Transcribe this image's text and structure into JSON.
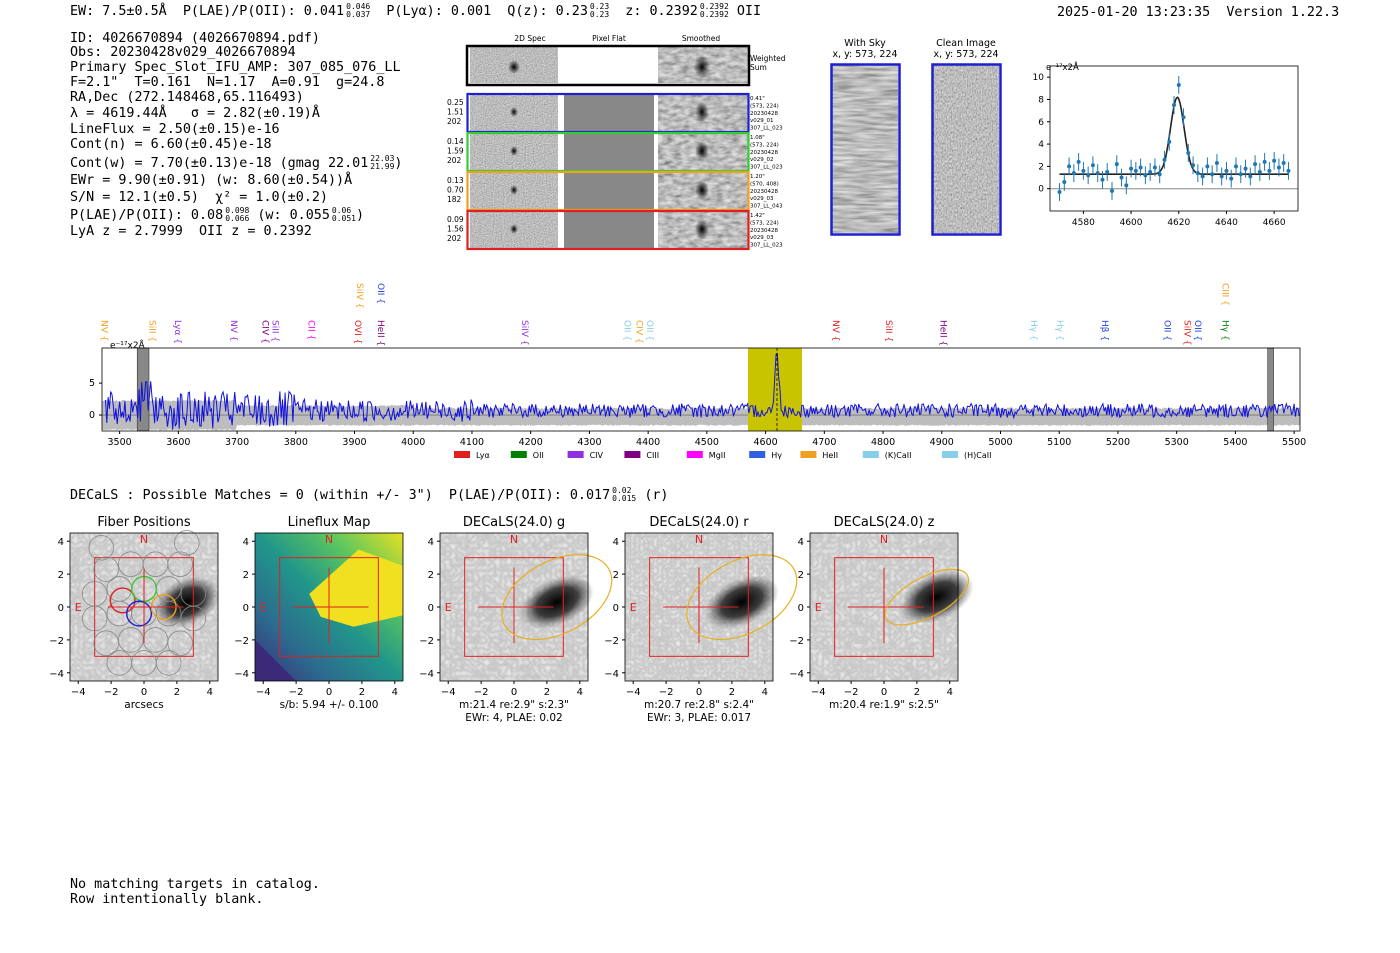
{
  "header": {
    "ew": "EW: 7.5±0.5Å",
    "plae_label": "P(LAE)/P(OII): 0.041",
    "plae_hi": "0.046",
    "plae_lo": "0.037",
    "plya": "P(Lyα): 0.001",
    "qz_label": "Q(z): 0.23",
    "qz_hi": "0.23",
    "qz_lo": "0.23",
    "z_label": "z: 0.2392",
    "z_hi": "0.2392",
    "z_lo": "0.2392",
    "z_type": "OII",
    "timestamp": "2025-01-20 13:23:35",
    "version": "Version 1.22.3"
  },
  "info": {
    "id": "ID: 4026670894 (4026670894.pdf)",
    "obs": "Obs: 20230428v029_4026670894",
    "slot": "Primary Spec_Slot_IFU_AMP: 307_085_076_LL",
    "params": "F=2.1\"  T=0.161  N=1.17  A=0.91  g=24.8",
    "radec": "RA,Dec (272.148468,65.116493)",
    "lambda": "λ = 4619.44Å   σ = 2.82(±0.19)Å",
    "lineflux": "LineFlux = 2.50(±0.15)e-16",
    "contn": "Cont(n) = 6.60(±0.45)e-18",
    "contw": "Cont(w) = 7.70(±0.13)e-18 (gmag 22.01",
    "contw_hi": "22.03",
    "contw_lo": "21.99",
    "contw_end": ")",
    "ewr": "EWr = 9.90(±0.91) (w: 8.60(±0.54))Å",
    "sn": "S/N = 12.1(±0.5)  χ² = 1.0(±0.2)",
    "plae": "P(LAE)/P(OII): 0.08",
    "plae_hi": "0.098",
    "plae_lo": "0.066",
    "plae_w": " (w: 0.055",
    "plae_w_hi": "0.06",
    "plae_w_lo": "0.051",
    "plae_w_end": ")",
    "lyaz": "LyA z = 2.7999  OII z = 0.2392"
  },
  "cutouts": {
    "col_2d": "2D Spec",
    "col_flat": "Pixel Flat",
    "col_smooth": "Smoothed",
    "weighted": "Weighted\nSum",
    "rows": [
      {
        "vals": "0.25\n1.51\n202",
        "meta": "0.41\"\n(573, 224)\n20230428\nv029_01\n307_LL_023",
        "color": "#1f1fd0"
      },
      {
        "vals": "0.14\n1.59\n202",
        "meta": "1.08\"\n(573, 224)\n20230428\nv029_02\n307_LL_023",
        "color": "#33cc33"
      },
      {
        "vals": "0.13\n0.70\n182",
        "meta": "1.20\"\n(570, 408)\n20230428\nv029_03\n307_LL_043",
        "color": "#f0a020"
      },
      {
        "vals": "0.09\n1.56\n202",
        "meta": "1.42\"\n(573, 224)\n20230428\nv029_03\n307_LL_023",
        "color": "#e02020"
      }
    ],
    "with_sky": "With Sky",
    "with_sky_xy": "x, y: 573, 224",
    "clean": "Clean Image",
    "clean_xy": "x, y: 573, 224"
  },
  "zoom_chart": {
    "type": "scatter",
    "unit_label": "e⁻¹⁷x2Å",
    "xlim": [
      4566,
      4670
    ],
    "ylim": [
      -2,
      11
    ],
    "xticks": [
      4580,
      4600,
      4620,
      4640,
      4660
    ],
    "yticks": [
      0,
      2,
      4,
      6,
      8,
      10
    ],
    "gauss": {
      "mu": 4619.4,
      "sigma": 2.82,
      "amp": 6.9,
      "cont": 1.3
    },
    "x": [
      4570,
      4572,
      4574,
      4576,
      4578,
      4580,
      4582,
      4584,
      4586,
      4588,
      4590,
      4592,
      4594,
      4596,
      4598,
      4600,
      4602,
      4604,
      4606,
      4608,
      4610,
      4612,
      4614,
      4616,
      4618,
      4620,
      4622,
      4624,
      4626,
      4628,
      4630,
      4632,
      4634,
      4636,
      4638,
      4640,
      4642,
      4644,
      4646,
      4648,
      4650,
      4652,
      4654,
      4656,
      4658,
      4660,
      4662,
      4664,
      4666
    ],
    "y": [
      -0.3,
      0.6,
      2.0,
      1.4,
      2.4,
      1.6,
      1.2,
      2.1,
      1.4,
      0.8,
      1.5,
      -0.2,
      2.2,
      1.0,
      0.3,
      1.8,
      1.6,
      1.9,
      1.2,
      1.5,
      1.9,
      1.3,
      2.6,
      4.2,
      7.5,
      9.3,
      6.4,
      3.2,
      2.1,
      1.4,
      1.1,
      2.0,
      1.3,
      2.3,
      1.1,
      1.6,
      0.9,
      2.0,
      1.3,
      1.8,
      1.1,
      2.2,
      1.5,
      2.4,
      1.6,
      2.5,
      1.9,
      2.3,
      1.6
    ],
    "err": [
      0.8,
      0.8,
      0.8,
      0.8,
      0.8,
      0.8,
      0.8,
      0.8,
      0.8,
      0.8,
      0.8,
      0.8,
      0.8,
      0.8,
      0.8,
      0.8,
      0.8,
      0.8,
      0.8,
      0.8,
      0.8,
      0.8,
      0.8,
      0.8,
      0.8,
      0.8,
      0.8,
      0.8,
      0.8,
      0.8,
      0.8,
      0.8,
      0.8,
      0.8,
      0.8,
      0.8,
      0.8,
      0.8,
      0.8,
      0.8,
      0.8,
      0.8,
      0.8,
      0.8,
      0.8,
      0.8,
      0.8,
      0.8,
      0.8
    ]
  },
  "chart_data": {
    "type": "line",
    "title": "",
    "unit_label": "e⁻¹⁷x2Å",
    "xlim": [
      3470,
      5510
    ],
    "ylim": [
      -2.5,
      10.5
    ],
    "xticks": [
      3500,
      3600,
      3700,
      3800,
      3900,
      4000,
      4100,
      4200,
      4300,
      4400,
      4500,
      4600,
      4700,
      4800,
      4900,
      5000,
      5100,
      5200,
      5300,
      5400,
      5500
    ],
    "yticks": [
      0,
      5
    ],
    "highlight_range": [
      4570,
      4662
    ],
    "line_center": 4619.4,
    "masked": [
      [
        3530,
        3550
      ],
      [
        5455,
        5465
      ]
    ],
    "seed": 7,
    "lines": [
      {
        "name": "NV",
        "wave": 3469.5,
        "color": "#f0a020"
      },
      {
        "name": "SiII",
        "wave": 3551,
        "color": "#f0a020"
      },
      {
        "name": "Lyα",
        "wave": 3594,
        "color": "#9030e0"
      },
      {
        "name": "NV",
        "wave": 3690,
        "color": "#9030e0"
      },
      {
        "name": "CIV",
        "wave": 3743,
        "color": "#800080"
      },
      {
        "name": "SiII",
        "wave": 3760,
        "color": "#9030e0"
      },
      {
        "name": "CII",
        "wave": 3822,
        "color": "#ff00ff"
      },
      {
        "name": "SiIV",
        "wave": 3904,
        "color": "#f0a020",
        "high": true
      },
      {
        "name": "OII",
        "wave": 3940,
        "color": "#2040e0",
        "high": true
      },
      {
        "name": "OVI",
        "wave": 3901,
        "color": "#e02020"
      },
      {
        "name": "HeII",
        "wave": 3940,
        "color": "#800080"
      },
      {
        "name": "SiIV",
        "wave": 4185,
        "color": "#9030e0"
      },
      {
        "name": "OII",
        "wave": 4360,
        "color": "#87ceeb"
      },
      {
        "name": "CIV",
        "wave": 4380,
        "color": "#f0a020"
      },
      {
        "name": "OII",
        "wave": 4398,
        "color": "#87ceeb"
      },
      {
        "name": "NV",
        "wave": 4715,
        "color": "#e02020"
      },
      {
        "name": "SiII",
        "wave": 4805,
        "color": "#e02020"
      },
      {
        "name": "HeII",
        "wave": 4898,
        "color": "#800080"
      },
      {
        "name": "Hγ",
        "wave": 5052,
        "color": "#87ceeb"
      },
      {
        "name": "Hγ",
        "wave": 5096,
        "color": "#87ceeb"
      },
      {
        "name": "Hβ",
        "wave": 5173,
        "color": "#2040e0"
      },
      {
        "name": "OII",
        "wave": 5279,
        "color": "#2040e0"
      },
      {
        "name": "SiIV",
        "wave": 5313,
        "color": "#e02020"
      },
      {
        "name": "OII",
        "wave": 5331,
        "color": "#2040e0"
      },
      {
        "name": "CIII",
        "wave": 5378,
        "color": "#f0a020",
        "high": true
      },
      {
        "name": "Hγ",
        "wave": 5378,
        "color": "#008000"
      }
    ],
    "legend": [
      {
        "name": "Lyα",
        "color": "#e02020"
      },
      {
        "name": "OII",
        "color": "#008000"
      },
      {
        "name": "CIV",
        "color": "#9030e0"
      },
      {
        "name": "CIII",
        "color": "#800080"
      },
      {
        "name": "MgII",
        "color": "#ff00ff"
      },
      {
        "name": "Hγ",
        "color": "#2f60e0"
      },
      {
        "name": "HeII",
        "color": "#f0a020"
      },
      {
        "name": "(K)CaII",
        "color": "#87ceeb"
      },
      {
        "name": "(H)CaII",
        "color": "#87ceeb"
      }
    ]
  },
  "decals": {
    "header": "DECaLS : Possible Matches = 0 (within +/- 3\")  P(LAE)/P(OII): 0.017",
    "hi": "0.02",
    "lo": "0.015",
    "band": "(r)",
    "panels": [
      {
        "title": "Fiber Positions",
        "cap1": "arcsecs",
        "cap2": "",
        "kind": "fiber"
      },
      {
        "title": "Lineflux Map",
        "cap1": "s/b: 5.94 +/- 0.100",
        "cap2": "",
        "kind": "flux"
      },
      {
        "title": "DECaLS(24.0) g",
        "cap1": "m:21.4  re:2.9\"  s:2.3\"",
        "cap2": "EWr: 4, PLAE: 0.02",
        "kind": "g"
      },
      {
        "title": "DECaLS(24.0) r",
        "cap1": "m:20.7  re:2.8\"  s:2.4\"",
        "cap2": "EWr: 3, PLAE: 0.017",
        "kind": "r"
      },
      {
        "title": "DECaLS(24.0) z",
        "cap1": "m:20.4  re:1.9\"  s:2.5\"",
        "cap2": "",
        "kind": "z"
      }
    ],
    "ticks": [
      "−4",
      "−2",
      "0",
      "2",
      "4"
    ],
    "n": "N",
    "e": "E"
  },
  "footer": {
    "line1": "No matching targets in catalog.",
    "line2": "Row intentionally blank."
  }
}
